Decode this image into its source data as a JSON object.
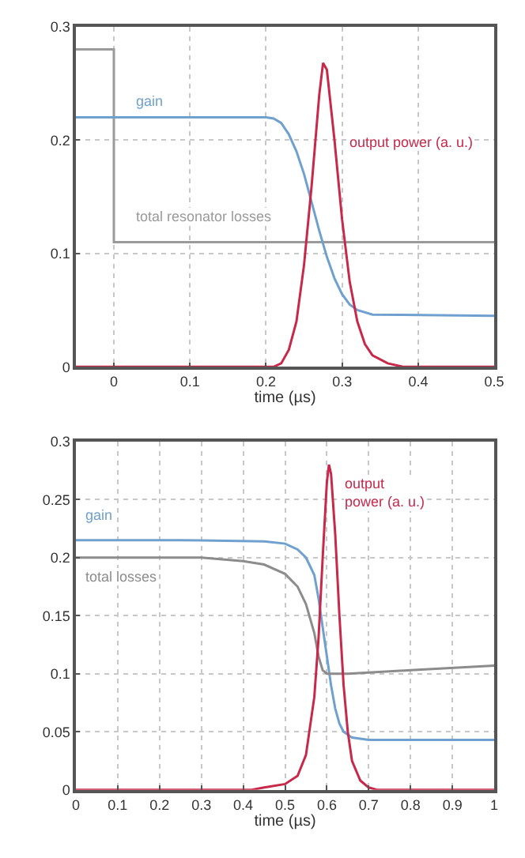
{
  "chart_data": [
    {
      "type": "line",
      "xlabel": "time (µs)",
      "xlim": [
        -0.05,
        0.5
      ],
      "xticks": [
        0,
        0.1,
        0.2,
        0.3,
        0.4,
        0.5
      ],
      "ylim": [
        0,
        0.3
      ],
      "yticks": [
        0,
        0.1,
        0.2,
        0.3
      ],
      "grid": true,
      "marker": "none",
      "line_style": "solid",
      "series": [
        {
          "name": "total resonator losses",
          "color": "#9a9a9a",
          "x": [
            -0.05,
            0,
            0,
            0.5
          ],
          "values": [
            0.28,
            0.28,
            0.11,
            0.11
          ]
        },
        {
          "name": "gain",
          "color": "#6fa0d0",
          "x": [
            -0.05,
            0.2,
            0.21,
            0.22,
            0.23,
            0.24,
            0.25,
            0.26,
            0.27,
            0.28,
            0.29,
            0.3,
            0.31,
            0.32,
            0.34,
            0.5
          ],
          "values": [
            0.22,
            0.22,
            0.219,
            0.215,
            0.205,
            0.19,
            0.17,
            0.145,
            0.12,
            0.097,
            0.078,
            0.064,
            0.055,
            0.05,
            0.046,
            0.045
          ]
        },
        {
          "name": "output power (a. u.)",
          "color": "#c8284a",
          "x": [
            -0.05,
            0.21,
            0.22,
            0.23,
            0.24,
            0.25,
            0.26,
            0.27,
            0.275,
            0.28,
            0.29,
            0.3,
            0.31,
            0.32,
            0.33,
            0.34,
            0.36,
            0.38,
            0.5
          ],
          "values": [
            0,
            0,
            0.003,
            0.015,
            0.04,
            0.09,
            0.16,
            0.24,
            0.268,
            0.262,
            0.2,
            0.13,
            0.075,
            0.04,
            0.02,
            0.01,
            0.003,
            0,
            0
          ]
        }
      ]
    },
    {
      "type": "line",
      "xlabel": "time (µs)",
      "xlim": [
        0,
        1
      ],
      "xticks": [
        0,
        0.1,
        0.2,
        0.3,
        0.4,
        0.5,
        0.6,
        0.7,
        0.8,
        0.9,
        1
      ],
      "ylim": [
        0,
        0.3
      ],
      "yticks": [
        0,
        0.05,
        0.1,
        0.15,
        0.2,
        0.25,
        0.3
      ],
      "grid": true,
      "marker": "none",
      "line_style": "solid",
      "series": [
        {
          "name": "gain",
          "color": "#6fa0d0",
          "x": [
            0,
            0.25,
            0.45,
            0.5,
            0.53,
            0.55,
            0.57,
            0.58,
            0.59,
            0.6,
            0.61,
            0.62,
            0.63,
            0.64,
            0.66,
            0.7,
            1
          ],
          "values": [
            0.215,
            0.215,
            0.214,
            0.212,
            0.207,
            0.2,
            0.185,
            0.165,
            0.14,
            0.115,
            0.09,
            0.07,
            0.057,
            0.05,
            0.045,
            0.043,
            0.043
          ]
        },
        {
          "name": "total losses",
          "color": "#8c8c8c",
          "x": [
            0,
            0.3,
            0.4,
            0.45,
            0.5,
            0.53,
            0.55,
            0.57,
            0.58,
            0.59,
            0.6,
            0.65,
            0.7,
            0.8,
            1
          ],
          "values": [
            0.2,
            0.2,
            0.197,
            0.194,
            0.186,
            0.175,
            0.16,
            0.135,
            0.115,
            0.103,
            0.1,
            0.1,
            0.101,
            0.103,
            0.107
          ]
        },
        {
          "name": "output power (a. u.)",
          "color": "#c8284a",
          "x": [
            0,
            0.42,
            0.45,
            0.5,
            0.53,
            0.55,
            0.57,
            0.58,
            0.59,
            0.6,
            0.605,
            0.61,
            0.62,
            0.63,
            0.64,
            0.65,
            0.66,
            0.68,
            0.7,
            0.72,
            1
          ],
          "values": [
            0,
            0,
            0.002,
            0.005,
            0.012,
            0.03,
            0.08,
            0.13,
            0.2,
            0.265,
            0.28,
            0.272,
            0.22,
            0.15,
            0.09,
            0.05,
            0.025,
            0.008,
            0.002,
            0,
            0
          ]
        }
      ]
    }
  ]
}
